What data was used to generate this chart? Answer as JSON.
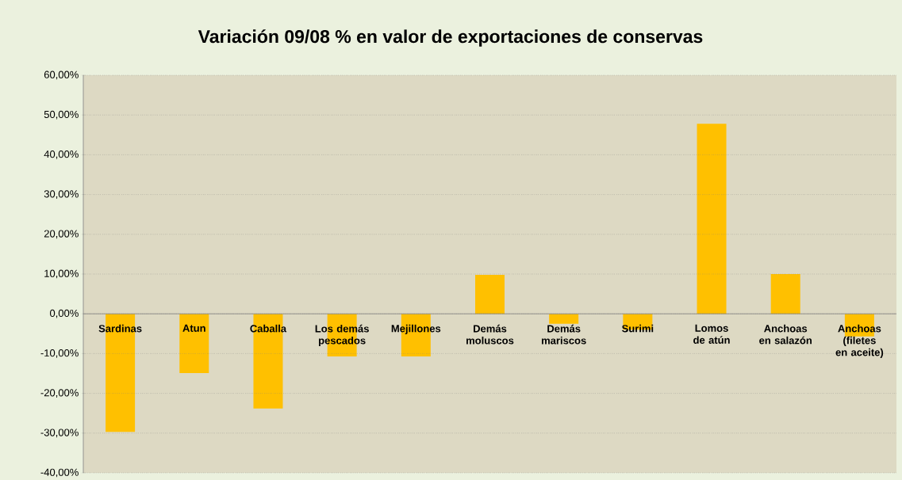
{
  "chart_data": {
    "type": "bar",
    "title": "Variación 09/08 % en valor de exportaciones de conservas",
    "categories": [
      "Sardinas",
      "Atun",
      "Caballa",
      "Los demás pescados",
      "Mejillones",
      "Demás moluscos",
      "Demás mariscos",
      "Surimi",
      "Lomos de atún",
      "Anchoas en salazón",
      "Anchoas (filetes en aceite)"
    ],
    "values": [
      -29.7,
      -14.9,
      -23.8,
      -10.7,
      -10.7,
      9.8,
      -2.5,
      -4.0,
      47.8,
      10.0,
      -5.7
    ],
    "color": "#ffc000",
    "ylim": [
      -40,
      60
    ],
    "yticks": [
      {
        "value": -40,
        "label": "-40,00%"
      },
      {
        "value": -30,
        "label": "-30,00%"
      },
      {
        "value": -20,
        "label": "-20,00%"
      },
      {
        "value": -10,
        "label": "-10,00%"
      },
      {
        "value": 0,
        "label": "0,00%"
      },
      {
        "value": 10,
        "label": "10,00%"
      },
      {
        "value": 20,
        "label": "20,00%"
      },
      {
        "value": 30,
        "label": "30,00%"
      },
      {
        "value": 40,
        "label": "40,00%"
      },
      {
        "value": 50,
        "label": "50,00%"
      },
      {
        "value": 60,
        "label": "60,00%"
      }
    ],
    "grid": "y"
  }
}
